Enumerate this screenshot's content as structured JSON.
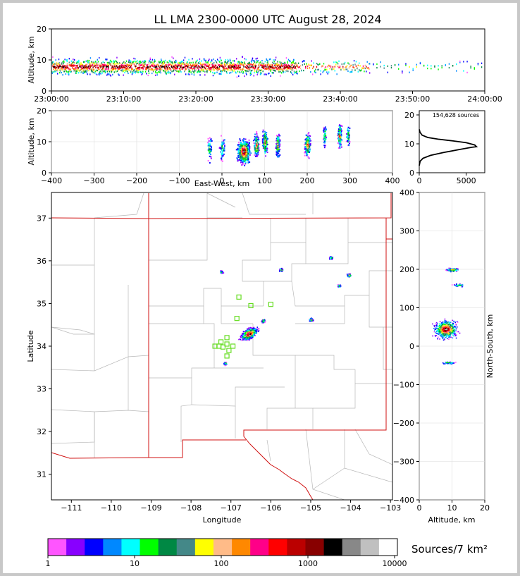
{
  "title": "LL LMA 2300-0000 UTC August 28, 2024",
  "colors": {
    "scale": [
      "#ff55ff",
      "#8800ff",
      "#0000ff",
      "#0088ff",
      "#00ffff",
      "#00ff00",
      "#008844",
      "#448888",
      "#ffff00",
      "#ffbb88",
      "#ff8800",
      "#ff0088",
      "#ff0000",
      "#bb0000",
      "#880000",
      "#000000",
      "#888888",
      "#c0c0c0",
      "#ffffff"
    ],
    "state_line": "#d01010",
    "county_line": "#b8b8b8",
    "stations": "#66dd22"
  },
  "chart_data": [
    {
      "id": "time-height",
      "type": "heatmap",
      "ylabel": "Altitude, km",
      "xlabel": "",
      "x_ticks": [
        "23:00:00",
        "23:10:00",
        "23:20:00",
        "23:30:00",
        "23:40:00",
        "23:50:00",
        "24:00:00"
      ],
      "xlim_minutes": [
        0,
        60
      ],
      "ylim": [
        0,
        20
      ],
      "y_ticks": [
        0,
        10,
        20
      ],
      "activity": [
        {
          "t": [
            0,
            34
          ],
          "z_center": 8,
          "z_spread": 3.5,
          "density": "high"
        },
        {
          "t": [
            34,
            44
          ],
          "z_center": 8,
          "z_spread": 3,
          "density": "medium"
        },
        {
          "t": [
            44,
            60
          ],
          "z_center": 8,
          "z_spread": 2.5,
          "density": "low"
        }
      ]
    },
    {
      "id": "ew-height",
      "type": "heatmap",
      "xlabel": "East-West, km",
      "ylabel": "Altitude, km",
      "xlim": [
        -400,
        400
      ],
      "x_ticks": [
        -400,
        -300,
        -200,
        -100,
        0,
        100,
        200,
        300,
        400
      ],
      "ylim": [
        0,
        20
      ],
      "y_ticks": [
        0,
        10,
        20
      ],
      "clusters": [
        {
          "x": -30,
          "z": 8,
          "w": 8,
          "density": "low"
        },
        {
          "x": 0,
          "z": 8,
          "w": 8,
          "density": "low"
        },
        {
          "x": 50,
          "z": 7,
          "w": 20,
          "density": "very high"
        },
        {
          "x": 80,
          "z": 9,
          "w": 8,
          "density": "medium"
        },
        {
          "x": 100,
          "z": 10,
          "w": 8,
          "density": "medium"
        },
        {
          "x": 130,
          "z": 9,
          "w": 6,
          "density": "medium"
        },
        {
          "x": 200,
          "z": 9,
          "w": 10,
          "density": "medium"
        },
        {
          "x": 240,
          "z": 12,
          "w": 5,
          "density": "low"
        },
        {
          "x": 275,
          "z": 12,
          "w": 6,
          "density": "medium"
        },
        {
          "x": 295,
          "z": 12,
          "w": 6,
          "density": "low"
        }
      ]
    },
    {
      "id": "altitude-histogram",
      "type": "line",
      "annotation": "154,628 sources",
      "xlim": [
        0,
        6000
      ],
      "x_ticks": [
        0,
        5000
      ],
      "ylim": [
        0,
        20
      ],
      "y_ticks": [
        0,
        10,
        20
      ],
      "x": [
        0,
        100,
        400,
        1200,
        2600,
        4200,
        5600,
        6100,
        5900,
        5000,
        3600,
        2000,
        900,
        300,
        80,
        0
      ],
      "y": [
        2.5,
        4,
        5,
        6,
        7,
        8,
        8.8,
        9,
        9.6,
        10.4,
        11,
        11.6,
        12.2,
        13,
        14,
        15
      ]
    },
    {
      "id": "plan-view",
      "type": "heatmap",
      "xlabel": "Longitude",
      "ylabel": "Latitude",
      "xlim": [
        -111.5,
        -102.95
      ],
      "x_ticks": [
        -111,
        -110,
        -109,
        -108,
        -107,
        -106,
        -105,
        -104,
        -103
      ],
      "ylim": [
        30.4,
        37.6
      ],
      "y_ticks": [
        31,
        32,
        33,
        34,
        35,
        36,
        37
      ],
      "clusters": [
        {
          "lon": -106.55,
          "lat": 34.3,
          "density": "very high"
        },
        {
          "lon": -106.2,
          "lat": 34.6,
          "density": "medium"
        },
        {
          "lon": -105.75,
          "lat": 35.8,
          "density": "medium"
        },
        {
          "lon": -107.25,
          "lat": 35.75,
          "density": "low"
        },
        {
          "lon": -105.0,
          "lat": 34.63,
          "density": "medium"
        },
        {
          "lon": -104.05,
          "lat": 35.67,
          "density": "medium"
        },
        {
          "lon": -104.3,
          "lat": 35.42,
          "density": "low"
        },
        {
          "lon": -107.15,
          "lat": 33.6,
          "density": "low"
        },
        {
          "lon": -104.5,
          "lat": 36.08,
          "density": "low"
        }
      ],
      "stations": [
        {
          "lon": -106.8,
          "lat": 35.15
        },
        {
          "lon": -106.5,
          "lat": 34.95
        },
        {
          "lon": -106.0,
          "lat": 34.98
        },
        {
          "lon": -106.85,
          "lat": 34.65
        },
        {
          "lon": -107.1,
          "lat": 34.2
        },
        {
          "lon": -107.25,
          "lat": 34.1
        },
        {
          "lon": -107.3,
          "lat": 34.0
        },
        {
          "lon": -107.1,
          "lat": 34.05
        },
        {
          "lon": -107.2,
          "lat": 33.98
        },
        {
          "lon": -107.05,
          "lat": 33.9
        },
        {
          "lon": -107.1,
          "lat": 33.77
        },
        {
          "lon": -106.95,
          "lat": 34.0
        },
        {
          "lon": -107.4,
          "lat": 34.0
        }
      ]
    },
    {
      "id": "height-ns",
      "type": "heatmap",
      "xlabel": "Altitude, km",
      "ylabel": "North-South, km",
      "xlim": [
        0,
        20
      ],
      "x_ticks": [
        0,
        10,
        20
      ],
      "ylim": [
        -400,
        400
      ],
      "y_ticks": [
        -400,
        -300,
        -200,
        -100,
        0,
        100,
        200,
        300,
        400
      ],
      "clusters": [
        {
          "ns": 200,
          "z": 10,
          "w": 6,
          "density": "medium"
        },
        {
          "ns": 160,
          "z": 12,
          "w": 5,
          "density": "low"
        },
        {
          "ns": 45,
          "z": 8,
          "w": 30,
          "density": "very high"
        },
        {
          "ns": -42,
          "z": 9,
          "w": 4,
          "density": "low"
        }
      ]
    },
    {
      "id": "colorbar",
      "type": "bar",
      "label": "Sources/7 km²",
      "tick_labels": [
        "1",
        "10",
        "100",
        "1000",
        "10000"
      ],
      "scale": "log",
      "range": [
        1,
        10000
      ]
    }
  ]
}
